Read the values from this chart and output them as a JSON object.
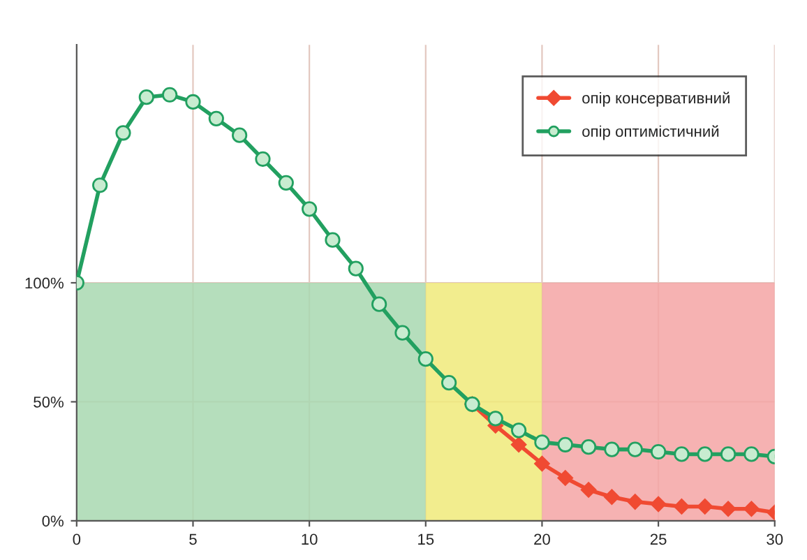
{
  "chart_data": {
    "type": "line",
    "x": [
      0,
      1,
      2,
      3,
      4,
      5,
      6,
      7,
      8,
      9,
      10,
      11,
      12,
      13,
      14,
      15,
      16,
      17,
      18,
      19,
      20,
      21,
      22,
      23,
      24,
      25,
      26,
      27,
      28,
      29,
      30
    ],
    "series": [
      {
        "type": "area",
        "color": "#a8d8b0",
        "x": [
          0,
          15
        ],
        "values": [
          100,
          100
        ]
      },
      {
        "type": "area",
        "color": "#f0ea7a",
        "x": [
          15,
          20
        ],
        "values": [
          100,
          100
        ]
      },
      {
        "type": "area",
        "color": "#f4a4a4",
        "x": [
          20,
          30
        ],
        "values": [
          100,
          100
        ]
      },
      {
        "name": "опір консервативний",
        "color": "#f04a32",
        "marker": "diamond",
        "values": [
          null,
          null,
          null,
          null,
          null,
          null,
          null,
          null,
          null,
          null,
          null,
          null,
          null,
          null,
          null,
          null,
          null,
          49,
          40,
          32,
          24,
          18,
          13,
          10,
          8,
          7,
          6,
          6,
          5,
          5,
          3.5
        ]
      },
      {
        "name": "опір оптимістичний",
        "color": "#22a060",
        "marker": "circle",
        "values": [
          100,
          141,
          163,
          178,
          179,
          176,
          169,
          162,
          152,
          142,
          131,
          118,
          106,
          91,
          79,
          68,
          58,
          49,
          43,
          38,
          33,
          32,
          31,
          30,
          30,
          29,
          28,
          28,
          28,
          28,
          27
        ]
      }
    ],
    "xlim": [
      0,
      30
    ],
    "xticks": [
      0,
      5,
      10,
      15,
      20,
      25,
      30
    ],
    "ylim": [
      0,
      200
    ],
    "yticks": [
      {
        "value": 0,
        "label": "0%"
      },
      {
        "value": 50,
        "label": "50%"
      },
      {
        "value": 100,
        "label": "100%"
      }
    ],
    "grid": true,
    "legend": "top right"
  }
}
